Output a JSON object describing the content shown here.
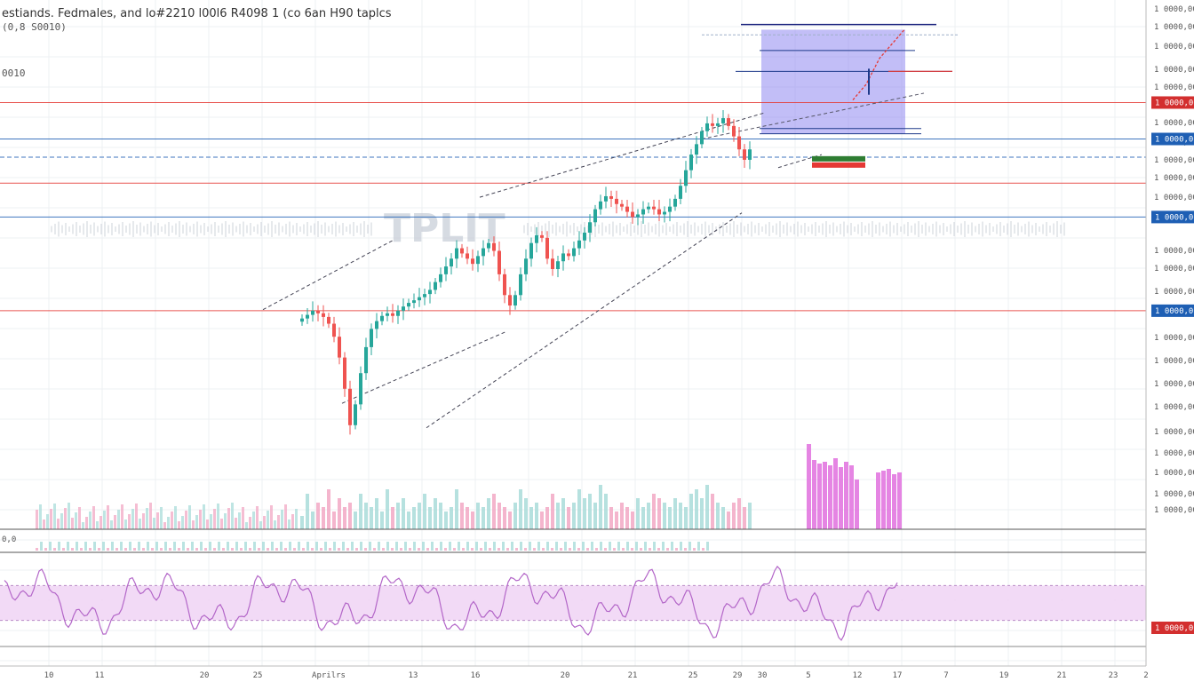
{
  "header": {
    "title": "estiands. Fedmales, and lo#2210 l00l6 R4098 1 (co 6an H90 taplcs",
    "line2": "(0,8 S0010)",
    "line3": "0010",
    "volume_label": "0,0"
  },
  "watermark": "TPLIT",
  "colors": {
    "up": "#26a69a",
    "down": "#ef5350",
    "red_level": "#e53935",
    "blue_level": "#1e5fb4",
    "zone_fill": "#8f88f0",
    "rsi_fill": "#f1d6f5",
    "rsi_line": "#b366c8",
    "volume_up": "#a9dcd9",
    "volume_down": "#f2a8c4",
    "volume_highlight": "#e070de"
  },
  "chart_data": {
    "type": "candlestick",
    "ylim": [
      0,
      100
    ],
    "series": [
      {
        "name": "",
        "values": [
          40.5,
          41.2,
          42.0,
          41.5,
          40.8,
          39.5,
          37.0,
          33.0,
          27.0,
          20.0,
          24.0,
          30.0,
          35.0,
          38.5,
          40.0,
          41.0,
          41.5,
          41.0,
          42.0,
          42.8,
          43.5,
          44.0,
          44.6,
          45.2,
          46.0,
          47.5,
          49.0,
          50.5,
          52.0,
          54.0,
          53.0,
          52.0,
          51.0,
          52.5,
          54.0,
          55.0,
          53.5,
          49.0,
          45.0,
          43.0,
          45.0,
          49.0,
          52.0,
          55.0,
          56.5,
          56.0,
          52.0,
          50.0,
          51.5,
          53.0,
          52.5,
          54.0,
          55.5,
          57.0,
          59.0,
          61.5,
          63.0,
          64.0,
          63.5,
          62.5,
          62.0,
          61.0,
          60.0,
          60.5,
          61.5,
          62.0,
          61.5,
          60.5,
          61.0,
          62.0,
          63.5,
          66.0,
          69.0,
          72.0,
          74.0,
          76.5,
          78.0,
          77.5,
          78.0,
          79.0,
          77.5,
          75.5,
          73.0,
          71.0,
          73.0
        ]
      }
    ],
    "price_levels": [
      {
        "kind": "red",
        "value": 82.0
      },
      {
        "kind": "blue",
        "value": 75.0
      },
      {
        "kind": "blue",
        "value": 71.5
      },
      {
        "kind": "red",
        "value": 66.5
      },
      {
        "kind": "blue",
        "value": 60.0
      },
      {
        "kind": "red",
        "value": 42.0
      }
    ],
    "target_zone": {
      "low": 76.0,
      "high": 96.0
    },
    "zone_targets": [
      97.0,
      95.0,
      92.0,
      88.0,
      77.0,
      76.0
    ],
    "volume": [
      3,
      8,
      4,
      6,
      5,
      9,
      4,
      7,
      5,
      6,
      4,
      8,
      6,
      5,
      7,
      4,
      9,
      5,
      6,
      7,
      4,
      5,
      6,
      8,
      5,
      7,
      6,
      4,
      5,
      9,
      6,
      5,
      4,
      6,
      5,
      7,
      8,
      6,
      5,
      4,
      6,
      9,
      7,
      5,
      6,
      4,
      5,
      8,
      6,
      7,
      5,
      6,
      9,
      7,
      8,
      6,
      10,
      8,
      5,
      4,
      6,
      5,
      4,
      7,
      5,
      6,
      8,
      7,
      6,
      5,
      7,
      6,
      5,
      8,
      9,
      7,
      10,
      8,
      6,
      5,
      4,
      6,
      7,
      5,
      6
    ],
    "rsi": {
      "upper": 70,
      "lower": 30
    },
    "y_tick_labels": [
      "1 0000,0000",
      "1 0000,0000",
      "1 0000,0000",
      "1 0000,0000",
      "1 0000,0000",
      "1 0000,0000",
      "1 0000,0000",
      "1 0000,0000",
      "1 0000,0000",
      "1 0000,0000",
      "1 0000,0000",
      "1 0000,0000",
      "1 0000,0000",
      "1 0000,0000",
      "1 0000,0000",
      "1 0000,0000",
      "1 0000,0000",
      "1 0000,0000",
      "1 0000,0000",
      "1 0000,0000",
      "1 0000,0000",
      "1 0000,0000",
      "1 0000,0000",
      "1 0000,0000",
      "1 0000,0000"
    ],
    "price_tags": [
      {
        "color": "red",
        "label": "1 0000,00"
      },
      {
        "color": "blue",
        "label": "1 0000,00"
      },
      {
        "color": "blue",
        "label": "1 0000,00"
      },
      {
        "color": "blue",
        "label": "1 0000,00"
      },
      {
        "color": "red",
        "label": "1 0000,00"
      }
    ],
    "x_tick_labels": [
      "10",
      "11",
      "20",
      "25",
      "Aprilrs",
      "13",
      "16",
      "20",
      "21",
      "25",
      "29",
      "30",
      "5",
      "12",
      "17",
      "7",
      "19",
      "21",
      "23",
      "2"
    ]
  }
}
